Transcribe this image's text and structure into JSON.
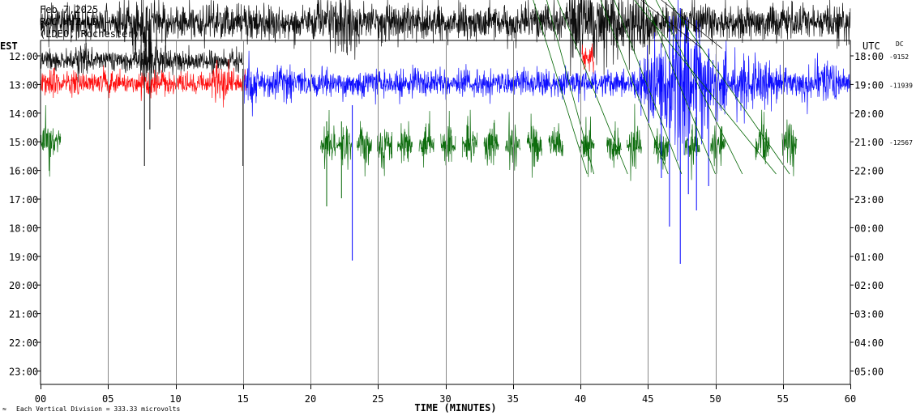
{
  "header": {
    "date": "Feb 7,2025",
    "station": "ROC HHZ LD --",
    "network": "(LDEO, Rochester)"
  },
  "labels": {
    "left_tz": "EST",
    "right_tz": "UTC",
    "dc": "DC",
    "xlabel": "TIME (MINUTES)",
    "footer": "Each Vertical Division =  333.33 microvolts"
  },
  "chart_data": {
    "type": "line",
    "title": "Feb 7,2025",
    "xlabel": "TIME (MINUTES)",
    "x_ticks": [
      "00",
      "05",
      "10",
      "15",
      "20",
      "25",
      "30",
      "35",
      "40",
      "45",
      "50",
      "55",
      "60"
    ],
    "xlim": [
      0,
      60
    ],
    "rows_est": [
      "12:00",
      "13:00",
      "14:00",
      "15:00",
      "16:00",
      "17:00",
      "18:00",
      "19:00",
      "20:00",
      "21:00",
      "22:00",
      "23:00"
    ],
    "rows_utc": [
      "18:00",
      "19:00",
      "20:00",
      "21:00",
      "22:00",
      "23:00",
      "00:00",
      "01:00",
      "02:00",
      "03:00",
      "04:00",
      "05:00"
    ],
    "dc_offsets": [
      {
        "row": "12:00",
        "value": "-9152"
      },
      {
        "row": "13:00",
        "value": "-11939"
      },
      {
        "row": "15:00",
        "value": "-12567"
      }
    ],
    "vertical_division_microvolts": 333.33,
    "trace_colors": [
      "#000000",
      "#ff0000",
      "#0000ff",
      "#006400"
    ],
    "grid": true
  }
}
